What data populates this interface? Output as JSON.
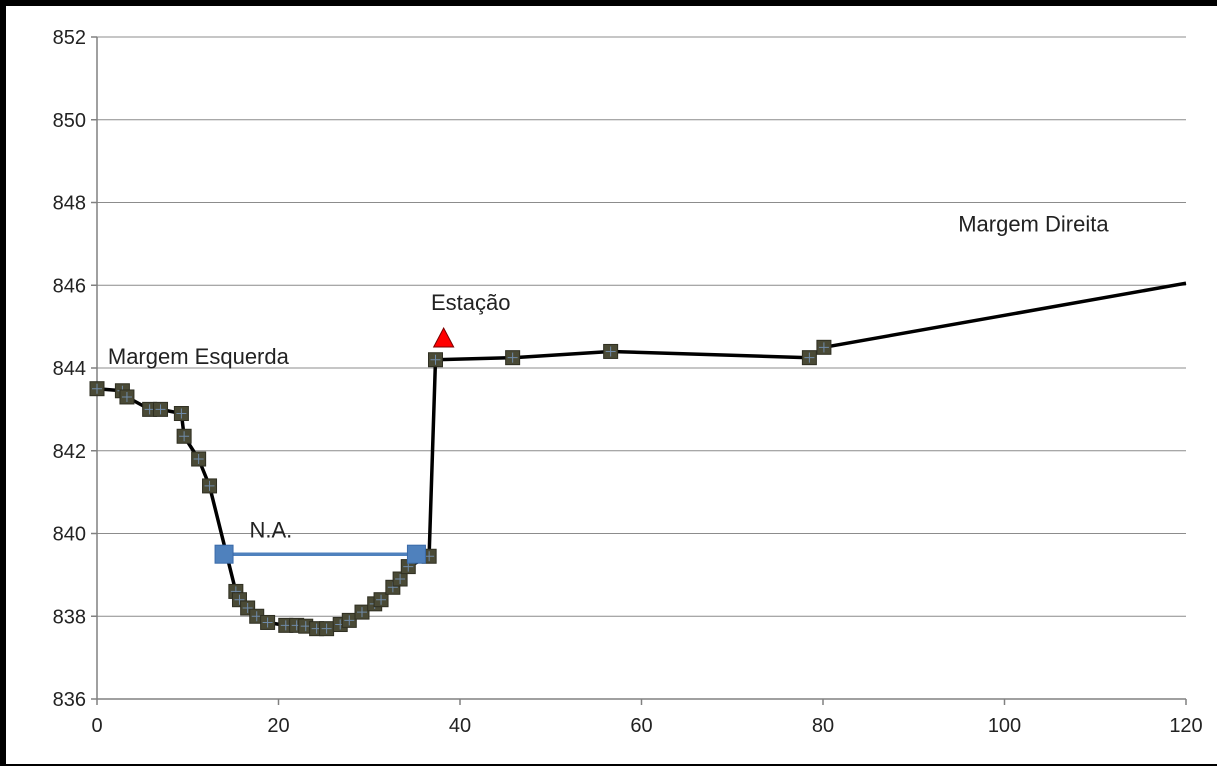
{
  "chart_data": {
    "type": "line",
    "title": "",
    "xlabel": "",
    "ylabel": "",
    "xlim": [
      0,
      120
    ],
    "ylim": [
      836,
      852
    ],
    "xticks": [
      0,
      20,
      40,
      60,
      80,
      100,
      120
    ],
    "yticks": [
      836,
      838,
      840,
      842,
      844,
      846,
      848,
      850,
      852
    ],
    "grid": "horizontal",
    "colors": {
      "profile": "#000000",
      "marker": "#4a4a36",
      "water": "#4f81bd",
      "station": "#ff0000"
    },
    "series": [
      {
        "name": "",
        "marker": "square",
        "points": [
          [
            0,
            843.5
          ],
          [
            2.8,
            843.45
          ],
          [
            3.3,
            843.3
          ],
          [
            5.8,
            843.0
          ],
          [
            7.0,
            843.0
          ],
          [
            9.3,
            842.9
          ],
          [
            9.6,
            842.35
          ],
          [
            11.2,
            841.8
          ],
          [
            12.4,
            841.15
          ],
          [
            15.3,
            838.6
          ],
          [
            15.7,
            838.4
          ],
          [
            16.6,
            838.2
          ],
          [
            17.6,
            838.0
          ],
          [
            18.8,
            837.85
          ],
          [
            20.8,
            837.78
          ],
          [
            22.0,
            837.78
          ],
          [
            23.0,
            837.76
          ],
          [
            24.2,
            837.7
          ],
          [
            25.3,
            837.7
          ],
          [
            26.8,
            837.8
          ],
          [
            27.8,
            837.9
          ],
          [
            29.2,
            838.1
          ],
          [
            30.6,
            838.3
          ],
          [
            31.3,
            838.4
          ],
          [
            32.6,
            838.7
          ],
          [
            33.4,
            838.9
          ],
          [
            34.3,
            839.2
          ],
          [
            36.6,
            839.45
          ],
          [
            37.3,
            844.2
          ],
          [
            45.8,
            844.25
          ],
          [
            56.6,
            844.4
          ],
          [
            78.5,
            844.25
          ],
          [
            80.1,
            844.5
          ],
          [
            120,
            846.05
          ]
        ]
      },
      {
        "name": "",
        "marker": "square",
        "points": [
          [
            14.0,
            839.5
          ],
          [
            35.2,
            839.5
          ]
        ]
      },
      {
        "name": "",
        "marker": "triangle",
        "points": [
          [
            38.2,
            844.7
          ]
        ]
      }
    ],
    "annotations": [
      {
        "text": "Margem Esquerda",
        "x": 1.2,
        "y": 844.1
      },
      {
        "text": "Estação",
        "x": 36.8,
        "y": 845.4
      },
      {
        "text": "N.A.",
        "x": 16.8,
        "y": 839.9
      },
      {
        "text": "Margem Direita",
        "x": 94.9,
        "y": 847.3
      }
    ]
  }
}
